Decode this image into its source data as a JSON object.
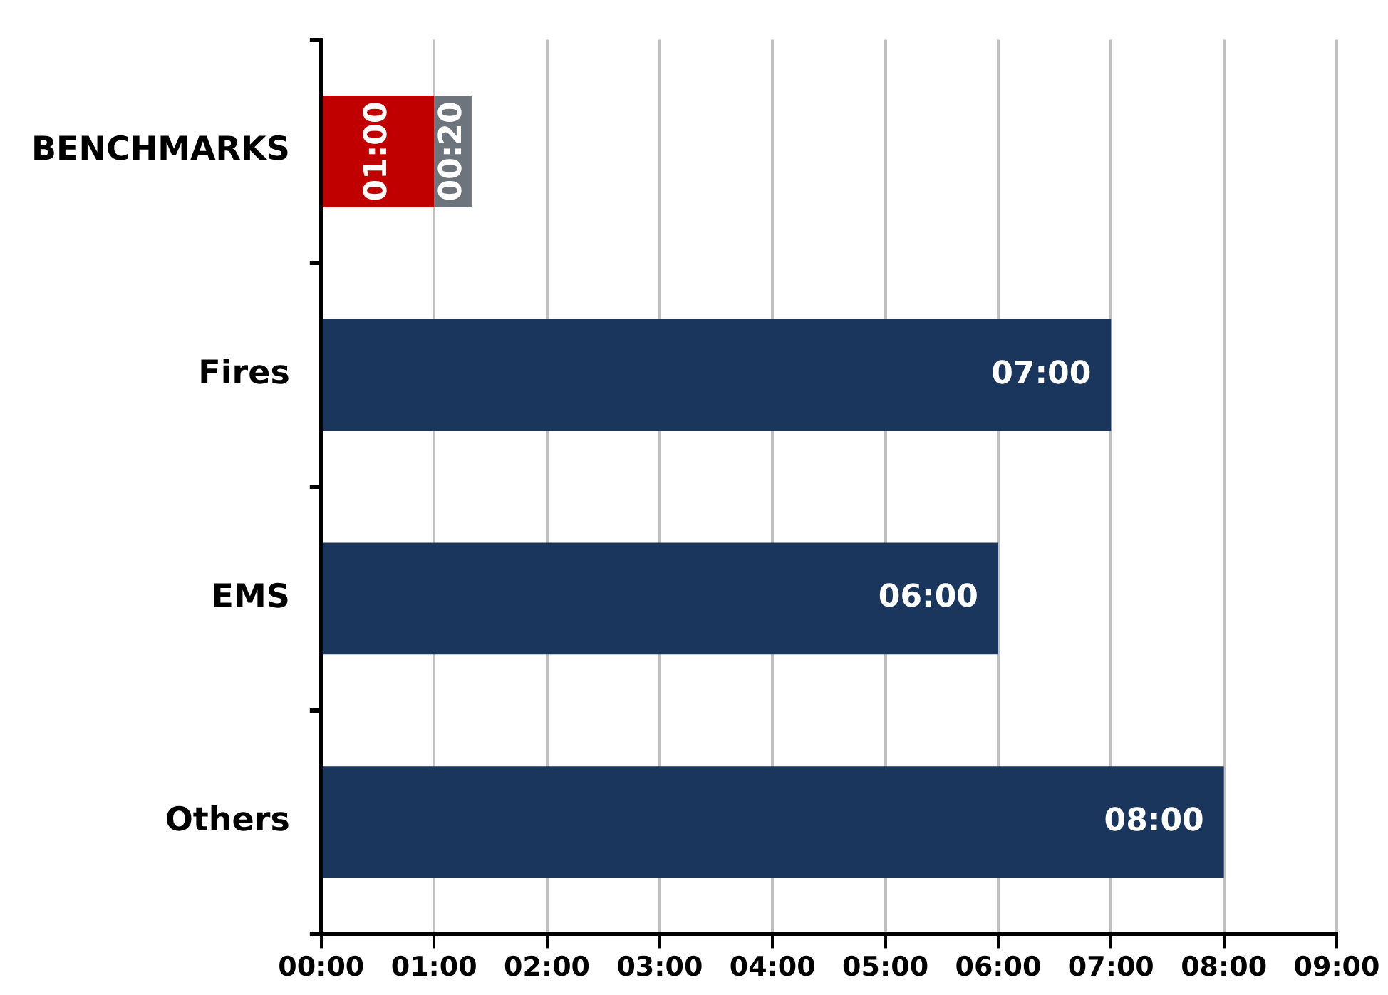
{
  "chart_data": {
    "type": "bar",
    "orientation": "horizontal",
    "stacked": true,
    "categories": [
      "BENCHMARKS",
      "Fires",
      "EMS",
      "Others"
    ],
    "series": [
      {
        "colors": [
          "#c00000",
          "#1a365d",
          "#1a365d",
          "#1a365d"
        ],
        "values": [
          1,
          7,
          6,
          8
        ],
        "value_labels": [
          "01:00",
          "07:00",
          "06:00",
          "08:00"
        ]
      },
      {
        "color": "#6d747c",
        "values": [
          0.333,
          null,
          null,
          null
        ],
        "value_labels": [
          "00:20",
          null,
          null,
          null
        ]
      }
    ],
    "xlim": [
      0,
      9
    ],
    "xticks": [
      {
        "value": 0,
        "label": "00:00"
      },
      {
        "value": 1,
        "label": "01:00"
      },
      {
        "value": 2,
        "label": "02:00"
      },
      {
        "value": 3,
        "label": "03:00"
      },
      {
        "value": 4,
        "label": "04:00"
      },
      {
        "value": 5,
        "label": "05:00"
      },
      {
        "value": 6,
        "label": "06:00"
      },
      {
        "value": 7,
        "label": "07:00"
      },
      {
        "value": 8,
        "label": "08:00"
      },
      {
        "value": 9,
        "label": "09:00"
      }
    ],
    "grid": "x",
    "legend": false
  }
}
